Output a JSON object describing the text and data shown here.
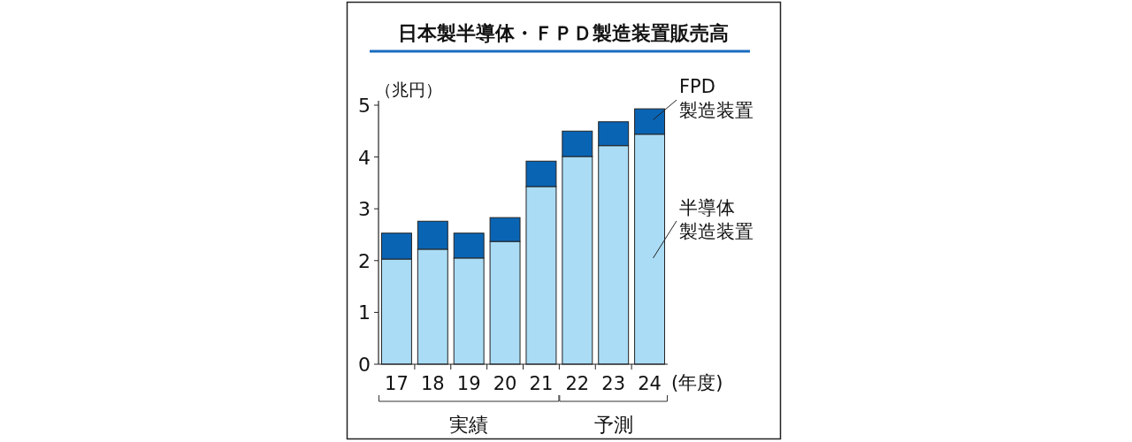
{
  "chart_data": {
    "type": "bar",
    "title": "日本製半導体・ＦＰＤ製造装置販売高",
    "ylabel": "（兆円）",
    "xlabel": "(年度)",
    "categories": [
      "17",
      "18",
      "19",
      "20",
      "21",
      "22",
      "23",
      "24"
    ],
    "stacked": true,
    "series": [
      {
        "name": "半導体製造装置",
        "color": "#aadcf5",
        "values": [
          2.03,
          2.22,
          2.05,
          2.37,
          3.43,
          4.01,
          4.22,
          4.44
        ]
      },
      {
        "name": "FPD製造装置",
        "color": "#0a64b4",
        "values": [
          0.5,
          0.54,
          0.48,
          0.46,
          0.49,
          0.49,
          0.46,
          0.49
        ]
      }
    ],
    "ylim": [
      0,
      5
    ],
    "yticks": [
      0,
      1,
      2,
      3,
      4,
      5
    ],
    "annotations": [
      "実績",
      "予測"
    ]
  }
}
